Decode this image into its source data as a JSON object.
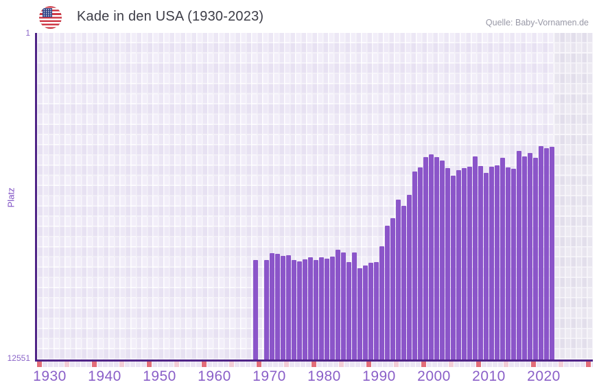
{
  "header": {
    "title": "Kade in den USA (1930-2023)",
    "flag_icon": "us-flag-icon",
    "source": "Quelle: Baby-Vornamen.de"
  },
  "axes": {
    "y_label": "Platz",
    "y_top_tick": "1",
    "y_bottom_tick": "12551",
    "x_ticks": [
      "1930",
      "1940",
      "1950",
      "1960",
      "1970",
      "1980",
      "1990",
      "2000",
      "2010",
      "2020"
    ]
  },
  "colors": {
    "bar": "#8b55c9",
    "axis_line": "#4f2487",
    "axis_text": "#8a64c8",
    "x_tick_text": "#8a5fc8",
    "plot_background": "#f2eef9",
    "future_band": "#e2deeb",
    "strip_tick_dark": "#e26d79",
    "strip_tick_light": "#f3ccd6",
    "title_text": "#3d3d47",
    "source_text": "#9898a6"
  },
  "chart_data": {
    "type": "bar",
    "title": "Kade in den USA (1930-2023)",
    "xlabel": "",
    "ylabel": "Platz",
    "y_axis_reversed": true,
    "ylim": [
      1,
      12551
    ],
    "x_range_labeled": [
      1930,
      2023
    ],
    "grid": true,
    "legend": "none",
    "no_data_years": "1930-1968 and 1970 have no bars",
    "years": [
      1969,
      1971,
      1972,
      1973,
      1974,
      1975,
      1976,
      1977,
      1978,
      1979,
      1980,
      1981,
      1982,
      1983,
      1984,
      1985,
      1986,
      1987,
      1988,
      1989,
      1990,
      1991,
      1992,
      1993,
      1994,
      1995,
      1996,
      1997,
      1998,
      1999,
      2000,
      2001,
      2002,
      2003,
      2004,
      2005,
      2006,
      2007,
      2008,
      2009,
      2010,
      2011,
      2012,
      2013,
      2014,
      2015,
      2016,
      2017,
      2018,
      2019,
      2020,
      2021,
      2022,
      2023
    ],
    "ranks": [
      8730,
      8730,
      8470,
      8490,
      8570,
      8550,
      8730,
      8780,
      8700,
      8620,
      8730,
      8620,
      8680,
      8600,
      8330,
      8440,
      8810,
      8440,
      9050,
      8940,
      8840,
      8810,
      8200,
      7410,
      7120,
      6410,
      6650,
      6220,
      5330,
      5170,
      4770,
      4670,
      4770,
      4910,
      5200,
      5490,
      5280,
      5200,
      5140,
      4750,
      5120,
      5380,
      5140,
      5090,
      4800,
      5170,
      5220,
      4540,
      4750,
      4620,
      4800,
      4350,
      4430,
      4380
    ]
  }
}
